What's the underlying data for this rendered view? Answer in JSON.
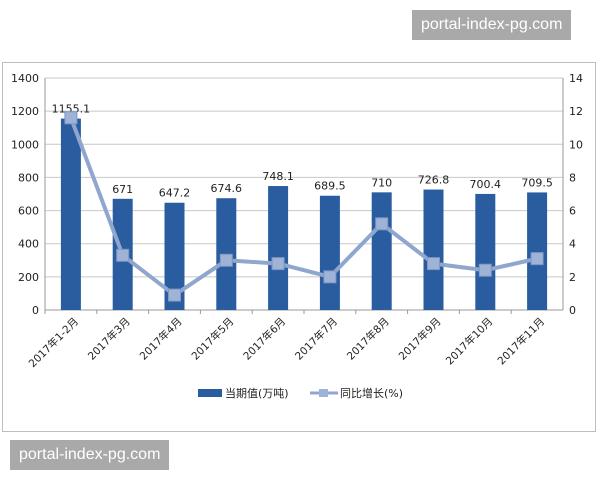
{
  "watermarks": [
    "portal-index-pg.com",
    "portal-index-pg.com"
  ],
  "chart_data": {
    "type": "bar",
    "categories": [
      "2017年1-2月",
      "2017年3月",
      "2017年4月",
      "2017年5月",
      "2017年6月",
      "2017年7月",
      "2017年8月",
      "2017年9月",
      "2017年10月",
      "2017年11月"
    ],
    "series": [
      {
        "name": "当期值(万吨)",
        "type": "bar",
        "axis": "left",
        "color": "#2a5d9f",
        "values": [
          1155.1,
          671,
          647.2,
          674.6,
          748.1,
          689.5,
          710,
          726.8,
          700.4,
          709.5
        ],
        "labels": [
          "1155.1",
          "671",
          "647.2",
          "674.6",
          "748.1",
          "689.5",
          "710",
          "726.8",
          "700.4",
          "709.5"
        ]
      },
      {
        "name": "同比增长(%)",
        "type": "line",
        "axis": "right",
        "color": "#8fa6cf",
        "values": [
          11.6,
          3.3,
          0.9,
          3.0,
          2.8,
          2.0,
          5.2,
          2.8,
          2.4,
          3.1
        ]
      }
    ],
    "ylim_left": [
      0,
      1400
    ],
    "yticks_left": [
      0,
      200,
      400,
      600,
      800,
      1000,
      1200,
      1400
    ],
    "ylim_right": [
      0,
      14
    ],
    "yticks_right": [
      0,
      2,
      4,
      6,
      8,
      10,
      12,
      14
    ],
    "grid": true,
    "legend": "bottom"
  }
}
